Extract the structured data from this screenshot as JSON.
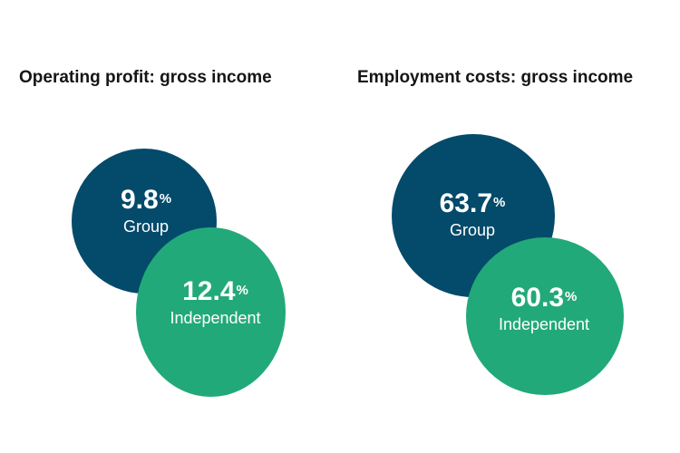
{
  "chart_data": [
    {
      "type": "bubble",
      "title": "Operating profit: gross income",
      "unit": "%",
      "series": [
        {
          "name": "Group",
          "value": 9.8,
          "value_text": "9.8",
          "color": "#044a6b"
        },
        {
          "name": "Independent",
          "value": 12.4,
          "value_text": "12.4",
          "color": "#22a979"
        }
      ]
    },
    {
      "type": "bubble",
      "title": "Employment costs: gross income",
      "unit": "%",
      "series": [
        {
          "name": "Group",
          "value": 63.7,
          "value_text": "63.7",
          "color": "#044a6b"
        },
        {
          "name": "Independent",
          "value": 60.3,
          "value_text": "60.3",
          "color": "#22a979"
        }
      ]
    }
  ]
}
